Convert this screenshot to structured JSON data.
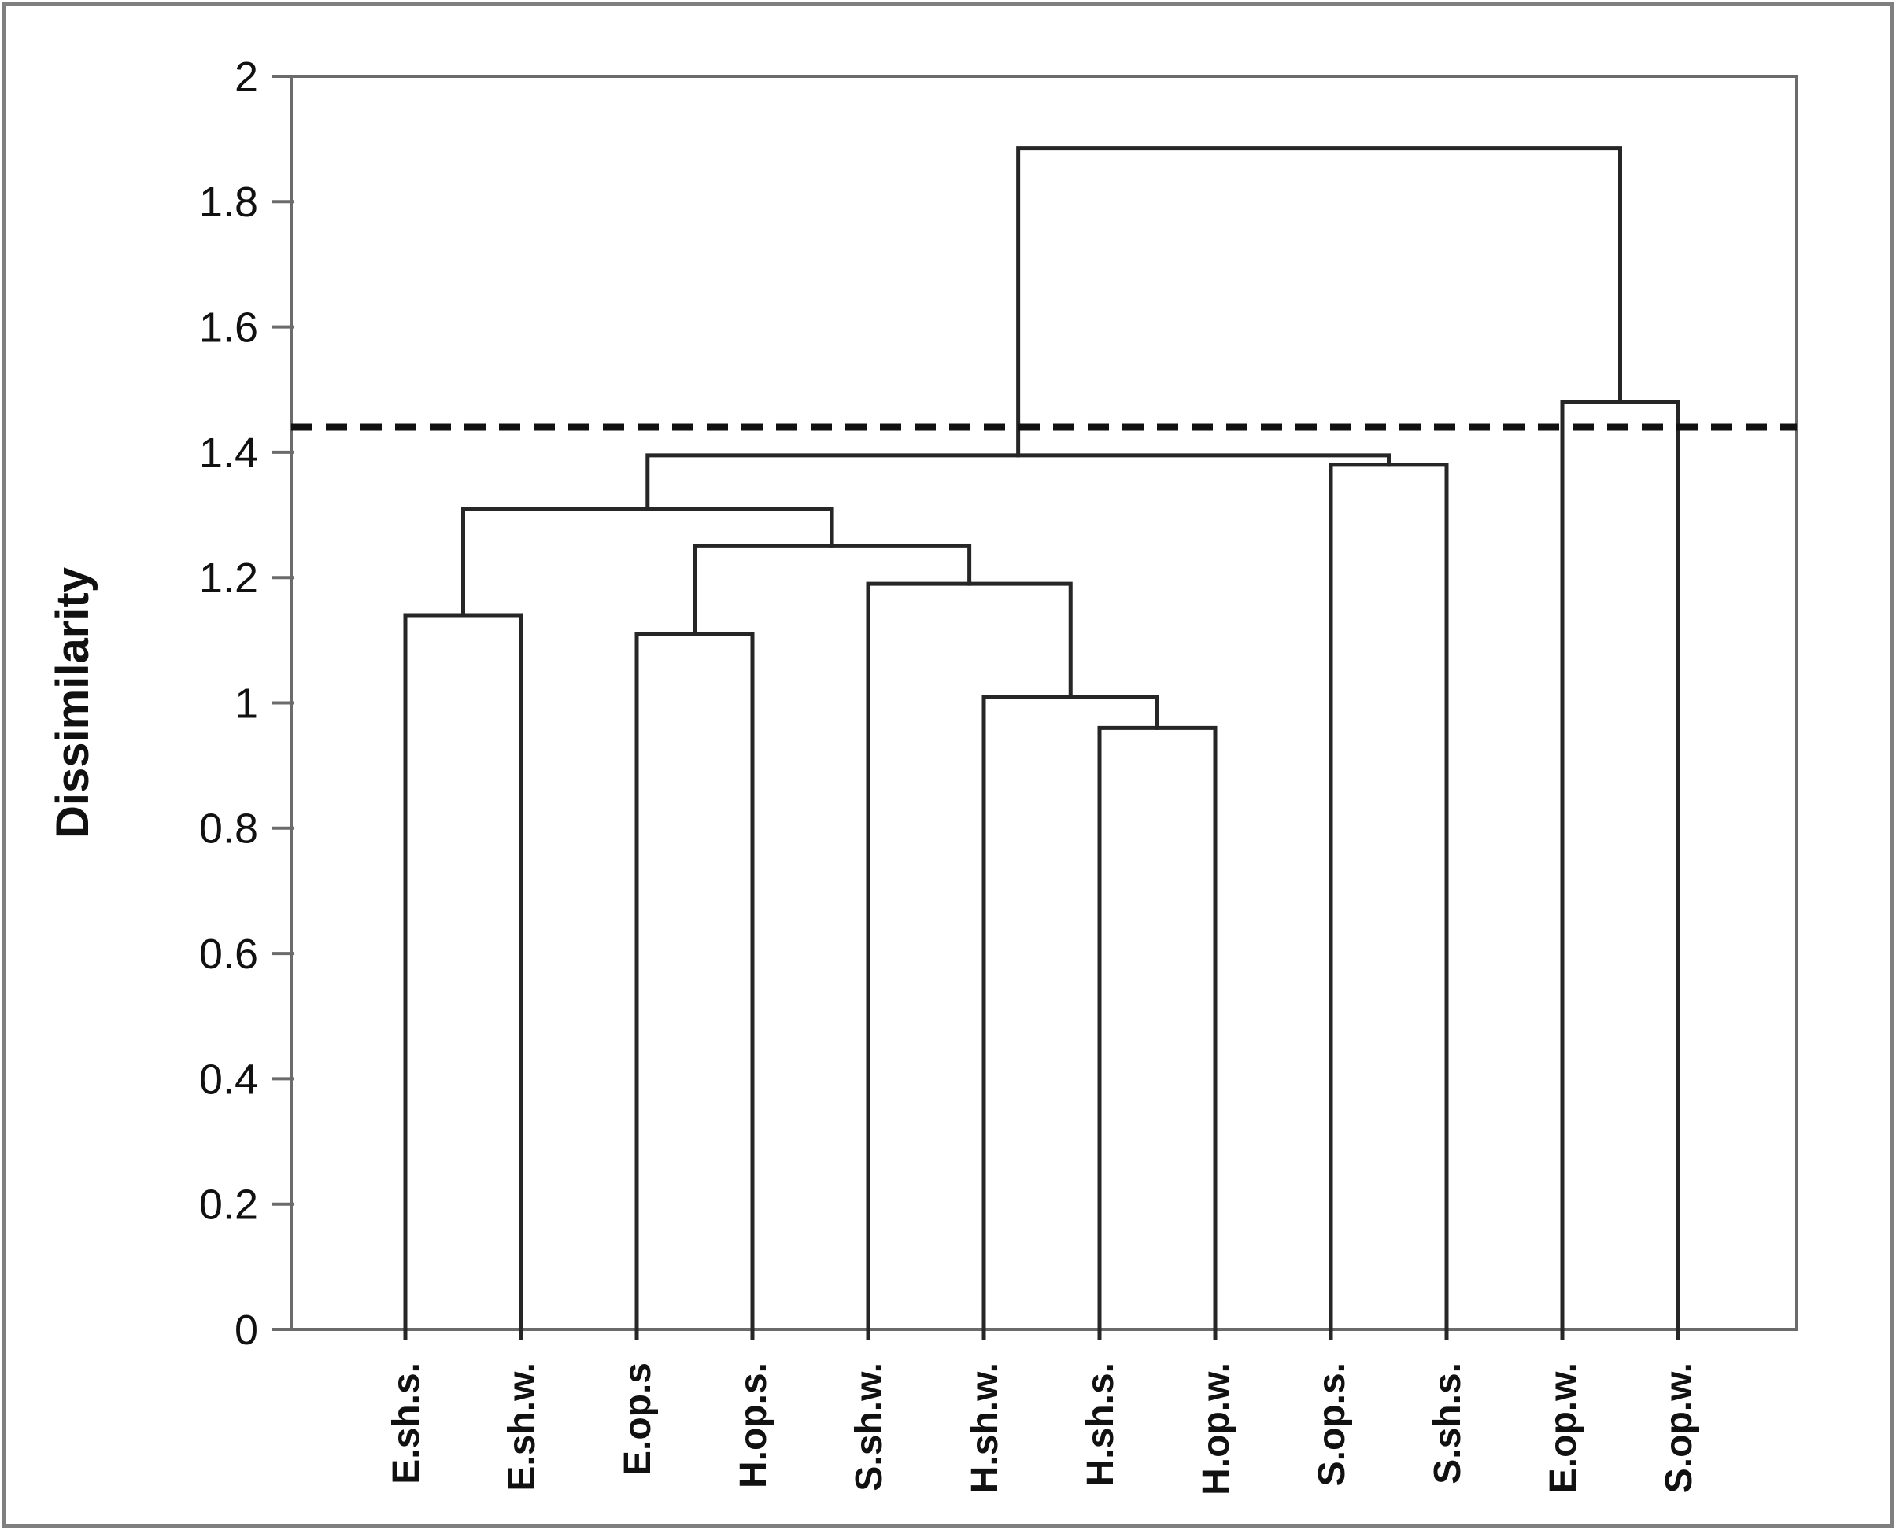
{
  "chart_data": {
    "type": "dendrogram",
    "title": "",
    "xlabel": "",
    "ylabel": "Dissimilarity",
    "ylim": [
      0,
      2
    ],
    "ytick_step": 0.2,
    "yticks": [
      {
        "value": 2.0,
        "label": "2"
      },
      {
        "value": 1.8,
        "label": "1.8"
      },
      {
        "value": 1.6,
        "label": "1.6"
      },
      {
        "value": 1.4,
        "label": "1.4"
      },
      {
        "value": 1.2,
        "label": "1.2"
      },
      {
        "value": 1.0,
        "label": "1"
      },
      {
        "value": 0.8,
        "label": "0.8"
      },
      {
        "value": 0.6,
        "label": "0.6"
      },
      {
        "value": 0.4,
        "label": "0.4"
      },
      {
        "value": 0.2,
        "label": "0.2"
      },
      {
        "value": 0.0,
        "label": "0"
      }
    ],
    "leaves": [
      "E.sh.s.",
      "E.sh.w.",
      "E.op.s",
      "H.op.s.",
      "S.sh.w.",
      "H.sh.w.",
      "H.sh.s.",
      "H.op.w.",
      "S.op.s.",
      "S.sh.s.",
      "E.op.w.",
      "S.op.w."
    ],
    "merges": [
      {
        "id": "n1",
        "a": "H.sh.s.",
        "b": "H.op.w.",
        "height": 0.96
      },
      {
        "id": "n2",
        "a": "H.sh.w.",
        "b": "n1",
        "height": 1.01
      },
      {
        "id": "n3",
        "a": "E.op.s",
        "b": "H.op.s.",
        "height": 1.11
      },
      {
        "id": "n4",
        "a": "E.sh.s.",
        "b": "E.sh.w.",
        "height": 1.14
      },
      {
        "id": "n5",
        "a": "S.sh.w.",
        "b": "n2",
        "height": 1.19
      },
      {
        "id": "n6",
        "a": "n3",
        "b": "n5",
        "height": 1.25
      },
      {
        "id": "n7",
        "a": "n4",
        "b": "n6",
        "height": 1.31
      },
      {
        "id": "n8",
        "a": "S.op.s.",
        "b": "S.sh.s.",
        "height": 1.38
      },
      {
        "id": "n9",
        "a": "n7",
        "b": "n8",
        "height": 1.395
      },
      {
        "id": "n10",
        "a": "E.op.w.",
        "b": "S.op.w.",
        "height": 1.48
      },
      {
        "id": "n11",
        "a": "n9",
        "b": "n10",
        "height": 1.885
      }
    ],
    "threshold": {
      "value": 1.44,
      "style": "dashed"
    },
    "grid": false,
    "legend": null,
    "colors": {
      "tree_line": "#262626",
      "threshold_line": "#111111",
      "axis_line": "#6b6b6b",
      "frame_border": "#7f7f7f",
      "text": "#111111",
      "background": "#ffffff"
    }
  }
}
